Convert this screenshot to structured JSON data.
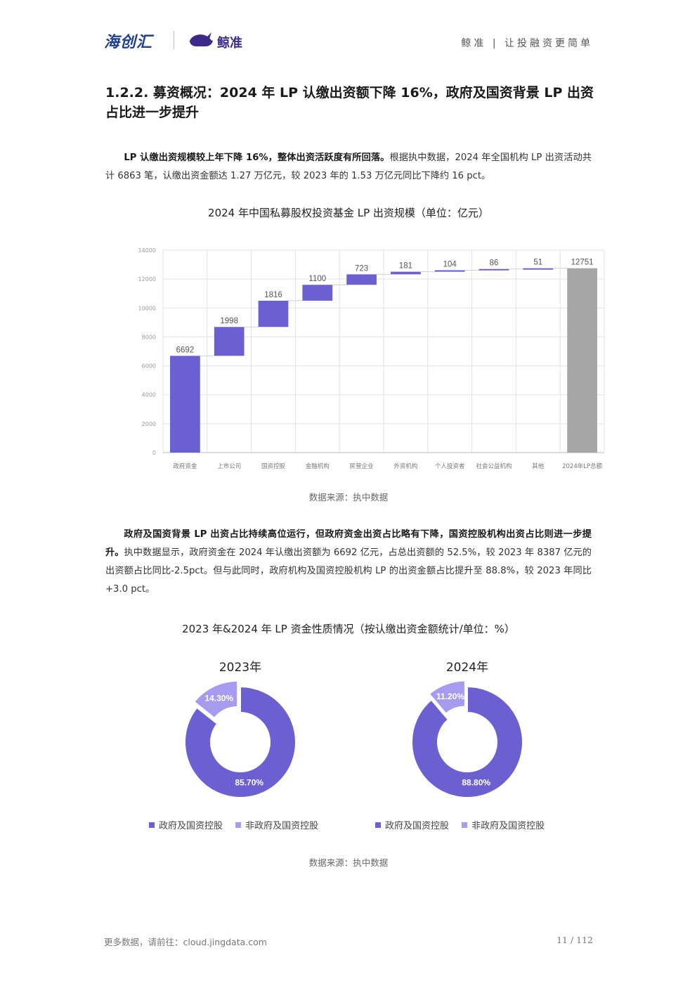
{
  "header": {
    "logo_left": "海创汇",
    "logo_right": "鲸准",
    "slogan": "鲸准 | 让投融资更简单"
  },
  "section": {
    "title": "1.2.2.  募资概况：2024 年 LP 认缴出资额下降 16%，政府及国资背景 LP 出资占比进一步提升"
  },
  "para1": {
    "bold": "LP 认缴出资规模较上年下降 16%，整体出资活跃度有所回落。",
    "text": "根据执中数据，2024 年全国机构 LP 出资活动共计 6863 笔，认缴出资金额达 1.27 万亿元，较 2023 年的 1.53 万亿元同比下降约 16 pct。"
  },
  "chart1": {
    "title": "2024 年中国私募股权投资基金 LP 出资规模（单位：亿元）",
    "source": "数据来源：执中数据"
  },
  "para2": {
    "bold": "政府及国资背景 LP 出资占比持续高位运行，但政府资金出资占比略有下降，国资控股机构出资占比则进一步提升。",
    "text": "执中数据显示，政府资金在 2024 年认缴出资额为 6692 亿元，占总出资额的 52.5%，较 2023 年 8387 亿元的出资额占比同比-2.5pct。但与此同时，政府机构及国资控股机构 LP 的出资金额占比提升至 88.8%，较 2023 年同比+3.0 pct。"
  },
  "chart2": {
    "title": "2023 年&2024 年 LP 资金性质情况（按认缴出资金额统计/单位：%）",
    "source": "数据来源：执中数据"
  },
  "footer": {
    "left": "更多数据，请前往：cloud.jingdata.com",
    "right": "11 / 112"
  },
  "colors": {
    "primary": "#6b5fd1",
    "secondary": "#a59cf0",
    "total": "#a6a6a6"
  },
  "chart_data": [
    {
      "type": "bar",
      "subtype": "waterfall",
      "title": "2024 年中国私募股权投资基金 LP 出资规模（单位：亿元）",
      "categories": [
        "政府资金",
        "上市公司",
        "国资控股",
        "金融机构",
        "民营企业",
        "外资机构",
        "个人投资者",
        "社会公益机构",
        "其他",
        "2024年LP总额"
      ],
      "values": [
        6692,
        1998,
        1816,
        1100,
        723,
        181,
        104,
        86,
        51,
        12751
      ],
      "bar_labels": [
        "6692",
        "1998",
        "1816",
        "1100",
        "723",
        "181",
        "104",
        "86",
        "51",
        "12751"
      ],
      "ylim": [
        0,
        14000
      ],
      "yticks": [
        "0",
        "2000",
        "4000",
        "6000",
        "8000",
        "10000",
        "12000",
        "14000"
      ],
      "grid": true,
      "colors": {
        "increment": "#6b5fd1",
        "total": "#a6a6a6"
      }
    },
    {
      "type": "pie",
      "subtype": "donut",
      "title": "2023年",
      "labels": [
        "政府及国资控股",
        "非政府及国资控股"
      ],
      "values": [
        85.7,
        14.3
      ],
      "value_labels": [
        "85.70%",
        "14.30%"
      ],
      "colors": [
        "#6b5fd1",
        "#a59cf0"
      ],
      "legend": "bottom"
    },
    {
      "type": "pie",
      "subtype": "donut",
      "title": "2024年",
      "labels": [
        "政府及国资控股",
        "非政府及国资控股"
      ],
      "values": [
        88.8,
        11.2
      ],
      "value_labels": [
        "88.80%",
        "11.20%"
      ],
      "colors": [
        "#6b5fd1",
        "#a59cf0"
      ],
      "legend": "bottom"
    }
  ]
}
